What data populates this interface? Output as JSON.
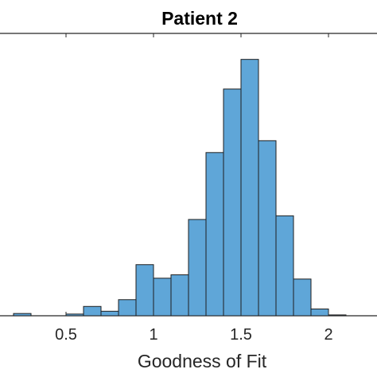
{
  "chart_data": {
    "type": "bar",
    "title": "Patient 2",
    "xlabel": "Goodness of Fit",
    "ylabel": "",
    "xlim": [
      0.0,
      2.1
    ],
    "ylim": [
      0,
      1.0
    ],
    "xticks": [
      0.5,
      1,
      1.5,
      2
    ],
    "xtick_labels": [
      "0.5",
      "1",
      "1.5",
      "2"
    ],
    "bin_width": 0.1,
    "bins": [
      {
        "x0": 0.2,
        "x1": 0.3,
        "value": 0.008
      },
      {
        "x0": 0.5,
        "x1": 0.6,
        "value": 0.006
      },
      {
        "x0": 0.6,
        "x1": 0.7,
        "value": 0.033
      },
      {
        "x0": 0.7,
        "x1": 0.8,
        "value": 0.016
      },
      {
        "x0": 0.8,
        "x1": 0.9,
        "value": 0.057
      },
      {
        "x0": 0.9,
        "x1": 1.0,
        "value": 0.181
      },
      {
        "x0": 1.0,
        "x1": 1.1,
        "value": 0.133
      },
      {
        "x0": 1.1,
        "x1": 1.2,
        "value": 0.145
      },
      {
        "x0": 1.2,
        "x1": 1.3,
        "value": 0.341
      },
      {
        "x0": 1.3,
        "x1": 1.4,
        "value": 0.578
      },
      {
        "x0": 1.4,
        "x1": 1.5,
        "value": 0.803
      },
      {
        "x0": 1.5,
        "x1": 1.6,
        "value": 0.908
      },
      {
        "x0": 1.6,
        "x1": 1.7,
        "value": 0.62
      },
      {
        "x0": 1.7,
        "x1": 1.8,
        "value": 0.354
      },
      {
        "x0": 1.8,
        "x1": 1.9,
        "value": 0.13
      },
      {
        "x0": 1.9,
        "x1": 2.0,
        "value": 0.024
      },
      {
        "x0": 2.0,
        "x1": 2.1,
        "value": 0.003
      }
    ],
    "colors": {
      "bar_fill": "#5fa6d8",
      "bar_edge": "#1f1f1f",
      "axis": "#262626"
    },
    "grid": false
  }
}
